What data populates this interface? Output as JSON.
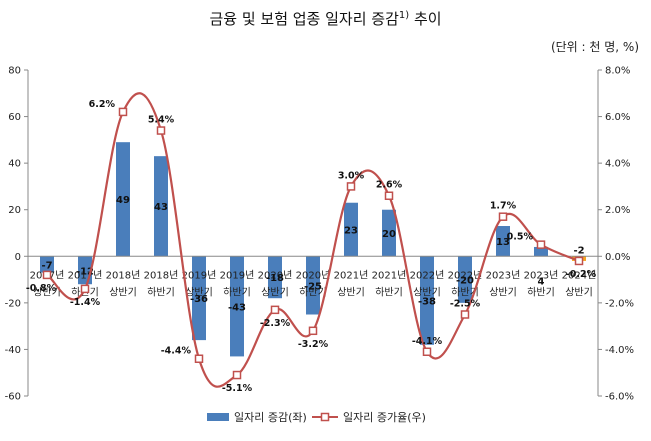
{
  "title": "금융 및 보험 업종 일자리 증감",
  "title_note": "1)",
  "title_suffix": " 추이",
  "unit": "(단위 : 천 명, %)",
  "colors": {
    "bar": "#4a7ebb",
    "line": "#c0504d",
    "last_bar": "#f5a623",
    "last_label": "#e03c31"
  },
  "chart_data": {
    "type": "bar+line",
    "categories": [
      [
        "2017년",
        "상반기"
      ],
      [
        "2017년",
        "하반기"
      ],
      [
        "2018년",
        "상반기"
      ],
      [
        "2018년",
        "하반기"
      ],
      [
        "2019년",
        "상반기"
      ],
      [
        "2019년",
        "하반기"
      ],
      [
        "2020년",
        "상반기"
      ],
      [
        "2020년",
        "하반기"
      ],
      [
        "2021년",
        "상반기"
      ],
      [
        "2021년",
        "하반기"
      ],
      [
        "2022년",
        "상반기"
      ],
      [
        "2022년",
        "하반기"
      ],
      [
        "2023년",
        "상반기"
      ],
      [
        "2023년",
        "하반기"
      ],
      [
        "2024년",
        "상반기"
      ]
    ],
    "series": [
      {
        "name": "일자리 증감(좌)",
        "type": "bar",
        "axis": "left",
        "values": [
          -7,
          -12,
          49,
          43,
          -36,
          -43,
          -18,
          -25,
          23,
          20,
          -38,
          -20,
          13,
          4,
          -2
        ],
        "labels": [
          "-7",
          "-12",
          "49",
          "43",
          "-36",
          "-43",
          "-18",
          "-25",
          "23",
          "20",
          "-38",
          "-20",
          "13",
          "4",
          "-2"
        ]
      },
      {
        "name": "일자리 증가율(우)",
        "type": "line",
        "axis": "right",
        "values": [
          -0.8,
          -1.4,
          6.2,
          5.4,
          -4.4,
          -5.1,
          -2.3,
          -3.2,
          3.0,
          2.6,
          -4.1,
          -2.5,
          1.7,
          0.5,
          -0.2
        ],
        "labels": [
          "-0.8%",
          "-1.4%",
          "6.2%",
          "5.4%",
          "-4.4%",
          "-5.1%",
          "-2.3%",
          "-3.2%",
          "3.0%",
          "2.6%",
          "-4.1%",
          "-2.5%",
          "1.7%",
          "0.5%",
          "-0.2%"
        ]
      }
    ],
    "y_left": {
      "min": -60,
      "max": 80,
      "step": 20,
      "ticks": [
        "-60",
        "-40",
        "-20",
        "0",
        "20",
        "40",
        "60",
        "80"
      ]
    },
    "y_right": {
      "min": -6,
      "max": 8,
      "step": 2,
      "ticks": [
        "-6.0%",
        "-4.0%",
        "-2.0%",
        "0.0%",
        "2.0%",
        "4.0%",
        "6.0%",
        "8.0%"
      ]
    },
    "legend_position": "bottom",
    "grid": false
  }
}
